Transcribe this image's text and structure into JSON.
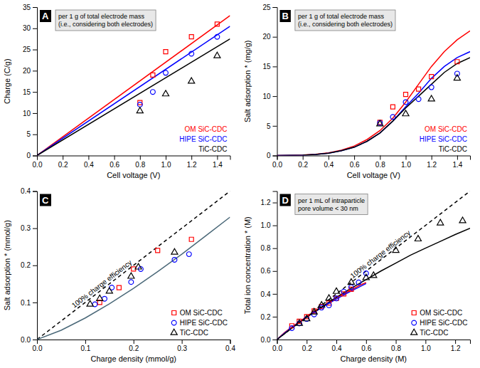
{
  "chart_data": [
    {
      "type": "scatter",
      "title": "A",
      "xlabel": "Cell voltage (V)",
      "ylabel": "Charge (C/g)",
      "annotation": "per 1 g of total electrode mass\n(i.e., considering both electrodes)",
      "xlim": [
        0,
        1.5
      ],
      "ylim": [
        0,
        35
      ],
      "xticks": [
        {
          "value": 0.0,
          "label": "0.0"
        },
        0.2,
        0.4,
        0.6,
        0.8,
        {
          "value": 1.0,
          "label": "1.0"
        },
        1.2,
        1.4
      ],
      "yticks": [
        0,
        5,
        10,
        15,
        20,
        25,
        30,
        35
      ],
      "series": [
        {
          "type": "line",
          "line_style": "solid",
          "color": "#ff0000",
          "x": [
            0.0,
            1.5
          ],
          "values": [
            0.0,
            33.0
          ]
        },
        {
          "type": "line",
          "line_style": "solid",
          "color": "#0000ff",
          "x": [
            0.0,
            1.5
          ],
          "values": [
            0.0,
            30.5
          ]
        },
        {
          "type": "line",
          "line_style": "solid",
          "color": "#000000",
          "x": [
            0.0,
            1.5
          ],
          "values": [
            0.0,
            27.5
          ]
        },
        {
          "type": "scatter",
          "name": "OM SiC-CDC",
          "marker": "square",
          "color": "#ff0000",
          "x": [
            0.8,
            0.9,
            1.0,
            1.2,
            1.4
          ],
          "values": [
            12.5,
            19.0,
            24.5,
            28.0,
            31.0
          ]
        },
        {
          "type": "scatter",
          "name": "HIPE SiC-CDC",
          "marker": "circle",
          "color": "#0000ff",
          "x": [
            0.8,
            0.9,
            1.0,
            1.2,
            1.4
          ],
          "values": [
            12.0,
            15.0,
            19.5,
            24.0,
            28.0
          ]
        },
        {
          "type": "scatter",
          "name": "TiC-CDC",
          "marker": "triangle",
          "color": "#000000",
          "x": [
            0.8,
            1.0,
            1.2,
            1.4
          ],
          "values": [
            10.5,
            14.5,
            17.5,
            23.5
          ]
        }
      ]
    },
    {
      "type": "scatter",
      "title": "B",
      "xlabel": "Cell voltage (V)",
      "ylabel": "Salt adsorption * (mg/g)",
      "annotation": "per 1 g of total electrode mass\n(i.e., considering both electrodes)",
      "xlim": [
        0,
        1.5
      ],
      "ylim": [
        0,
        25
      ],
      "xticks": [
        {
          "value": 0.0,
          "label": "0.0"
        },
        0.2,
        0.4,
        0.6,
        0.8,
        {
          "value": 1.0,
          "label": "1.0"
        },
        1.2,
        1.4
      ],
      "yticks": [
        0,
        5,
        10,
        15,
        20,
        25
      ],
      "series": [
        {
          "type": "line",
          "line_style": "solid",
          "color": "#ff0000",
          "x": [
            0.0,
            0.1,
            0.2,
            0.3,
            0.4,
            0.5,
            0.6,
            0.7,
            0.8,
            0.9,
            1.0,
            1.1,
            1.2,
            1.3,
            1.4,
            1.5
          ],
          "values": [
            0.0,
            0.02,
            0.08,
            0.2,
            0.45,
            0.9,
            1.6,
            2.7,
            4.2,
            6.3,
            9.0,
            12.0,
            15.0,
            17.5,
            19.5,
            21.0
          ]
        },
        {
          "type": "line",
          "line_style": "solid",
          "color": "#0000ff",
          "x": [
            0.0,
            0.1,
            0.2,
            0.3,
            0.4,
            0.5,
            0.6,
            0.7,
            0.8,
            0.9,
            1.0,
            1.1,
            1.2,
            1.3,
            1.4,
            1.5
          ],
          "values": [
            0.0,
            0.02,
            0.07,
            0.18,
            0.4,
            0.8,
            1.4,
            2.4,
            3.8,
            5.8,
            8.2,
            10.5,
            13.0,
            15.0,
            16.5,
            17.5
          ]
        },
        {
          "type": "line",
          "line_style": "solid",
          "color": "#000000",
          "x": [
            0.0,
            0.1,
            0.2,
            0.3,
            0.4,
            0.5,
            0.6,
            0.7,
            0.8,
            0.9,
            1.0,
            1.1,
            1.2,
            1.3,
            1.4,
            1.5
          ],
          "values": [
            0.0,
            0.02,
            0.07,
            0.18,
            0.4,
            0.8,
            1.4,
            2.4,
            3.8,
            5.8,
            8.0,
            10.0,
            12.0,
            14.0,
            15.5,
            16.5
          ]
        },
        {
          "type": "scatter",
          "name": "OM SiC-CDC",
          "marker": "square",
          "color": "#ff0000",
          "x": [
            0.8,
            0.9,
            1.0,
            1.1,
            1.2,
            1.4
          ],
          "values": [
            5.6,
            8.2,
            10.3,
            11.2,
            13.3,
            15.8
          ]
        },
        {
          "type": "scatter",
          "name": "HIPE SiC-CDC",
          "marker": "circle",
          "color": "#0000ff",
          "x": [
            0.8,
            0.9,
            1.0,
            1.1,
            1.2,
            1.4
          ],
          "values": [
            5.5,
            6.5,
            9.0,
            9.5,
            11.5,
            13.8
          ]
        },
        {
          "type": "scatter",
          "name": "TiC-CDC",
          "marker": "triangle",
          "color": "#000000",
          "x": [
            0.8,
            1.0,
            1.2,
            1.4
          ],
          "values": [
            5.3,
            7.0,
            9.5,
            13.0
          ]
        }
      ]
    },
    {
      "type": "scatter",
      "title": "C",
      "xlabel": "Charge density (mmol/g)",
      "ylabel": "Salt adsorption * (mmol/g)",
      "xlim": [
        0,
        0.4
      ],
      "ylim": [
        0,
        0.4
      ],
      "xticks": [
        {
          "value": 0.0,
          "label": "0.0"
        },
        0.1,
        0.2,
        0.3,
        0.4
      ],
      "yticks": [
        {
          "value": 0.0,
          "label": "0.0"
        },
        0.1,
        0.2,
        0.3,
        0.4
      ],
      "legend": "lower right",
      "series": [
        {
          "type": "line",
          "name": "100% charge efficiency",
          "line_style": "dashed",
          "color": "#000000",
          "x": [
            0.0,
            0.4
          ],
          "values": [
            0.0,
            0.4
          ]
        },
        {
          "type": "line",
          "line_style": "solid",
          "color": "#4a6878",
          "x": [
            0.0,
            0.05,
            0.1,
            0.15,
            0.2,
            0.25,
            0.3,
            0.35,
            0.4
          ],
          "values": [
            0.0,
            0.025,
            0.058,
            0.096,
            0.138,
            0.183,
            0.23,
            0.28,
            0.33
          ]
        },
        {
          "type": "scatter",
          "name": "OM SiC-CDC",
          "marker": "square",
          "color": "#ff0000",
          "x": [
            0.13,
            0.17,
            0.2,
            0.25,
            0.32
          ],
          "values": [
            0.1,
            0.14,
            0.19,
            0.24,
            0.27
          ]
        },
        {
          "type": "scatter",
          "name": "HIPE SiC-CDC",
          "marker": "circle",
          "color": "#0000ff",
          "x": [
            0.12,
            0.14,
            0.155,
            0.195,
            0.215,
            0.285,
            0.315
          ],
          "values": [
            0.095,
            0.11,
            0.14,
            0.155,
            0.19,
            0.215,
            0.23
          ]
        },
        {
          "type": "scatter",
          "name": "TiC-CDC",
          "marker": "triangle",
          "color": "#000000",
          "x": [
            0.11,
            0.13,
            0.15,
            0.195,
            0.21,
            0.285
          ],
          "values": [
            0.095,
            0.11,
            0.13,
            0.17,
            0.195,
            0.235
          ]
        }
      ]
    },
    {
      "type": "scatter",
      "title": "D",
      "xlabel": "Charge density (M)",
      "ylabel": "Total ion concentration * (M)",
      "annotation": "per 1 mL of intraparticle\npore volume < 30 nm",
      "xlim": [
        0,
        1.3
      ],
      "ylim": [
        0,
        1.3
      ],
      "xticks": [
        {
          "value": 0.0,
          "label": "0.0"
        },
        0.2,
        0.4,
        0.6,
        0.8,
        {
          "value": 1.0,
          "label": "1.0"
        },
        1.2
      ],
      "yticks": [
        {
          "value": 0.0,
          "label": "0.0"
        },
        0.2,
        0.4,
        0.6,
        0.8,
        {
          "value": 1.0,
          "label": "1.0"
        },
        1.2
      ],
      "legend": "lower right",
      "series": [
        {
          "type": "line",
          "name": "100% charge efficiency",
          "line_style": "dashed",
          "color": "#000000",
          "x": [
            0.0,
            1.3
          ],
          "values": [
            0.0,
            1.3
          ]
        },
        {
          "type": "line",
          "line_style": "solid",
          "color": "#ff0000",
          "x": [
            0.0,
            0.05,
            0.1,
            0.15,
            0.2,
            0.25,
            0.3,
            0.35,
            0.4,
            0.45,
            0.5,
            0.55,
            0.6
          ],
          "values": [
            0.0,
            0.06,
            0.11,
            0.155,
            0.2,
            0.245,
            0.285,
            0.325,
            0.365,
            0.4,
            0.435,
            0.47,
            0.5
          ]
        },
        {
          "type": "line",
          "line_style": "solid",
          "color": "#0000ff",
          "x": [
            0.0,
            0.05,
            0.1,
            0.15,
            0.2,
            0.25,
            0.3,
            0.35,
            0.4,
            0.45,
            0.5,
            0.55,
            0.6
          ],
          "values": [
            0.0,
            0.055,
            0.105,
            0.15,
            0.195,
            0.238,
            0.278,
            0.317,
            0.355,
            0.39,
            0.425,
            0.458,
            0.49
          ]
        },
        {
          "type": "line",
          "line_style": "solid",
          "color": "#000000",
          "x": [
            0.0,
            0.1,
            0.2,
            0.3,
            0.4,
            0.5,
            0.6,
            0.7,
            0.8,
            0.9,
            1.0,
            1.1,
            1.2,
            1.3
          ],
          "values": [
            0.0,
            0.1,
            0.195,
            0.285,
            0.37,
            0.45,
            0.525,
            0.6,
            0.67,
            0.74,
            0.8,
            0.86,
            0.92,
            0.975
          ]
        },
        {
          "type": "scatter",
          "name": "OM SiC-CDC",
          "marker": "square",
          "color": "#ff0000",
          "x": [
            0.1,
            0.15,
            0.2,
            0.25,
            0.3,
            0.35,
            0.4,
            0.45,
            0.5
          ],
          "values": [
            0.12,
            0.16,
            0.2,
            0.25,
            0.29,
            0.32,
            0.36,
            0.4,
            0.44
          ]
        },
        {
          "type": "scatter",
          "name": "HIPE SiC-CDC",
          "marker": "circle",
          "color": "#0000ff",
          "x": [
            0.1,
            0.15,
            0.2,
            0.25,
            0.3,
            0.35,
            0.4,
            0.45,
            0.5,
            0.55,
            0.6
          ],
          "values": [
            0.1,
            0.14,
            0.18,
            0.22,
            0.28,
            0.3,
            0.36,
            0.42,
            0.46,
            0.5,
            0.58
          ]
        },
        {
          "type": "scatter",
          "name": "TiC-CDC",
          "marker": "triangle",
          "color": "#000000",
          "x": [
            0.15,
            0.2,
            0.25,
            0.3,
            0.35,
            0.4,
            0.5,
            0.6,
            0.65,
            0.8,
            0.95,
            1.1,
            1.25
          ],
          "values": [
            0.14,
            0.18,
            0.24,
            0.3,
            0.36,
            0.42,
            0.5,
            0.54,
            0.56,
            0.78,
            0.88,
            1.02,
            1.04
          ]
        }
      ]
    }
  ]
}
